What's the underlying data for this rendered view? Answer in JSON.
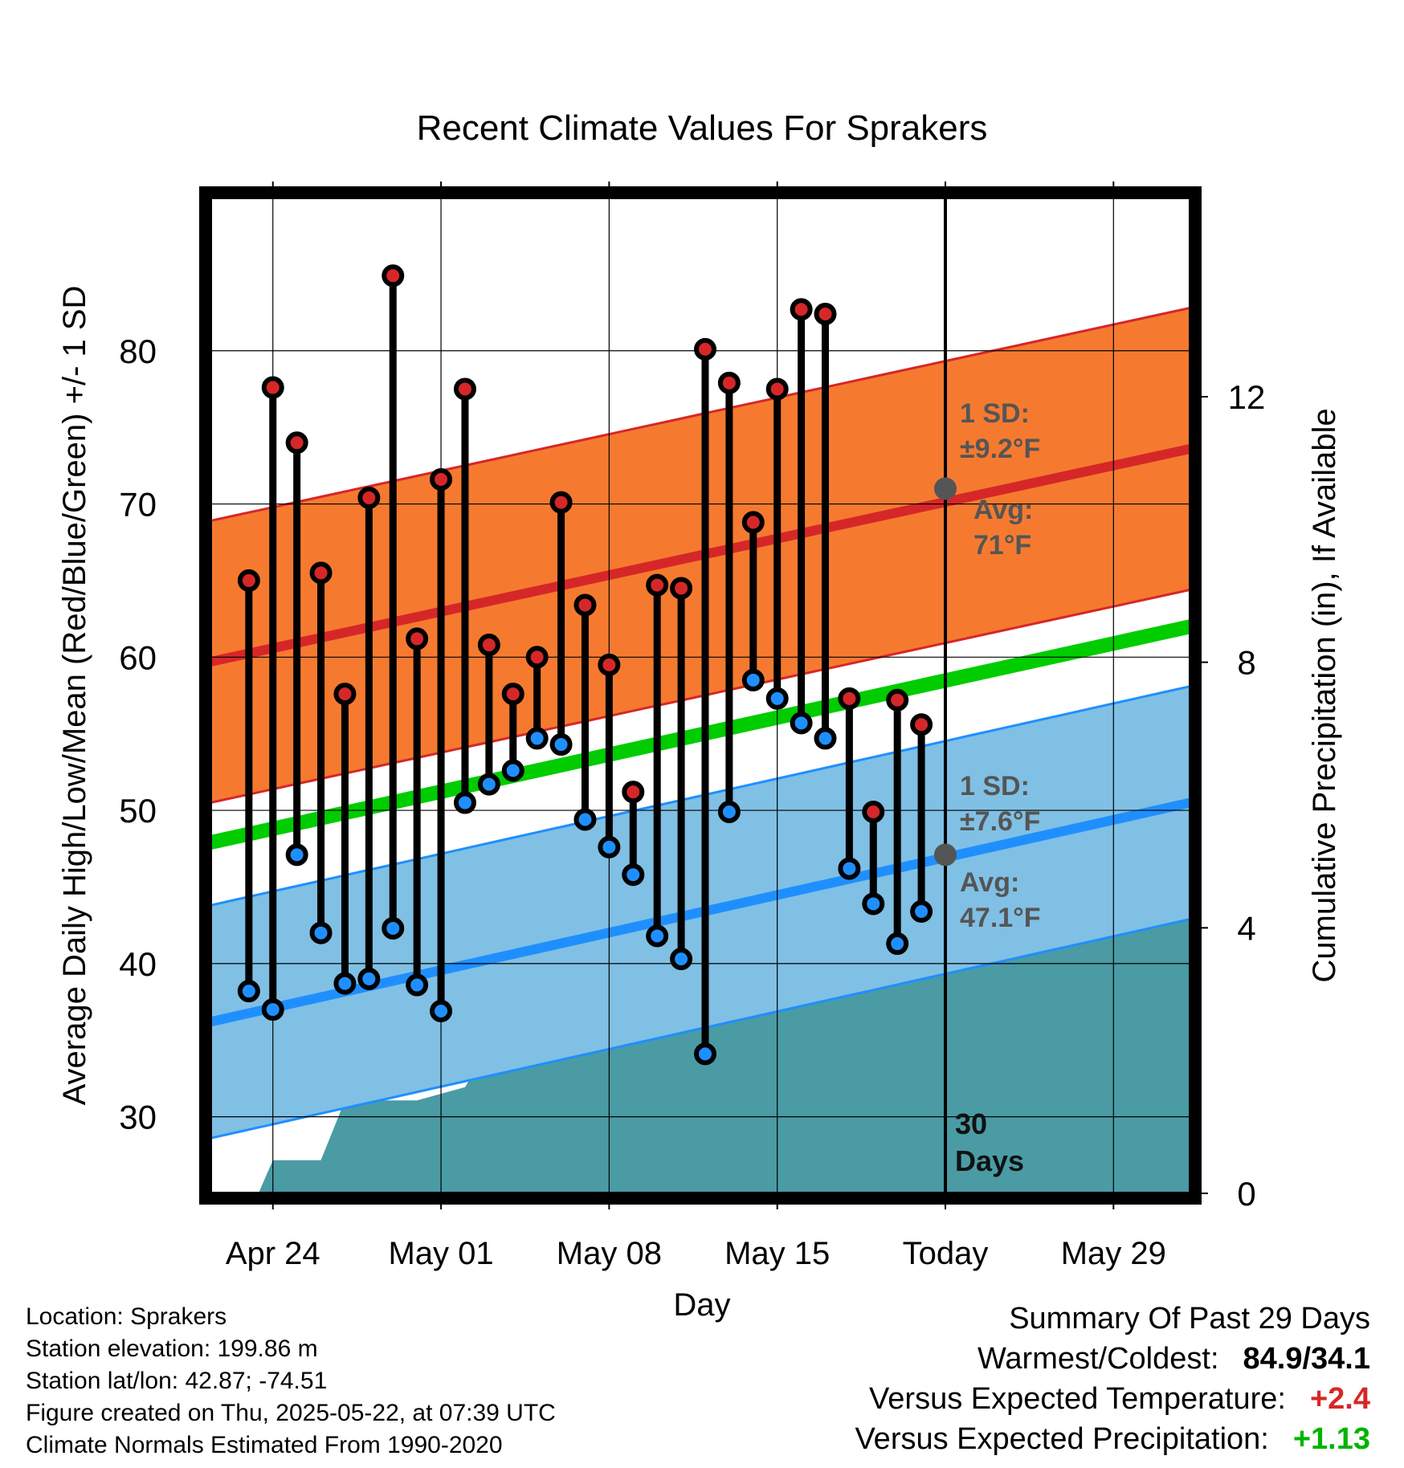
{
  "chart_data": {
    "type": "line",
    "title": "Recent Climate Values For Sprakers",
    "xlabel": "Day",
    "ylabel": "Average Daily High/Low/Mean (Red/Blue/Green) +/- 1 SD",
    "y2label": "Cumulative Precipitation (in), If Available",
    "ylim": [
      25,
      90
    ],
    "y2lim": [
      0,
      15
    ],
    "yticks": [
      30,
      40,
      50,
      60,
      70,
      80
    ],
    "y2ticks": [
      0,
      4,
      8,
      12
    ],
    "xticks": [
      {
        "day": 2,
        "label": "Apr 24"
      },
      {
        "day": 9,
        "label": "May 01"
      },
      {
        "day": 16,
        "label": "May 08"
      },
      {
        "day": 23,
        "label": "May 15"
      },
      {
        "day": 30,
        "label": "Today"
      },
      {
        "day": 37,
        "label": "May 29"
      }
    ],
    "xlim": [
      -0.6,
      40.2
    ],
    "today_day": 30,
    "grid": true,
    "colors": {
      "high": "#d62728",
      "low": "#1f8fff",
      "mean": "#00cc00",
      "high_band": "#f57a30",
      "low_band": "#80c0e4",
      "precip": "#4a9ba4"
    },
    "normals": {
      "high_avg": {
        "start": 59.7,
        "end": 73.6
      },
      "high_sd": 9.2,
      "low_avg": {
        "start": 36.2,
        "end": 50.5
      },
      "low_sd": 7.6,
      "mean": {
        "start": 47.9,
        "end": 62.0
      }
    },
    "daily": [
      {
        "day": 1,
        "high": 65.0,
        "low": 38.2
      },
      {
        "day": 2,
        "high": 77.6,
        "low": 37.0
      },
      {
        "day": 3,
        "high": 74.0,
        "low": 47.1
      },
      {
        "day": 4,
        "high": 65.5,
        "low": 42.0
      },
      {
        "day": 5,
        "high": 57.6,
        "low": 38.7
      },
      {
        "day": 6,
        "high": 70.4,
        "low": 39.0
      },
      {
        "day": 7,
        "high": 84.9,
        "low": 42.3
      },
      {
        "day": 8,
        "high": 61.2,
        "low": 38.6
      },
      {
        "day": 9,
        "high": 71.6,
        "low": 36.9
      },
      {
        "day": 10,
        "high": 77.5,
        "low": 50.5
      },
      {
        "day": 11,
        "high": 60.8,
        "low": 51.7
      },
      {
        "day": 12,
        "high": 57.6,
        "low": 52.6
      },
      {
        "day": 13,
        "high": 60.0,
        "low": 54.7
      },
      {
        "day": 14,
        "high": 70.1,
        "low": 54.3
      },
      {
        "day": 15,
        "high": 63.4,
        "low": 49.4
      },
      {
        "day": 16,
        "high": 59.5,
        "low": 47.6
      },
      {
        "day": 17,
        "high": 51.2,
        "low": 45.8
      },
      {
        "day": 18,
        "high": 64.7,
        "low": 41.8
      },
      {
        "day": 19,
        "high": 64.5,
        "low": 40.3
      },
      {
        "day": 20,
        "high": 80.1,
        "low": 34.1
      },
      {
        "day": 21,
        "high": 77.9,
        "low": 49.9
      },
      {
        "day": 22,
        "high": 68.8,
        "low": 58.5
      },
      {
        "day": 23,
        "high": 77.5,
        "low": 57.3
      },
      {
        "day": 24,
        "high": 82.7,
        "low": 55.7
      },
      {
        "day": 25,
        "high": 82.4,
        "low": 54.7
      },
      {
        "day": 26,
        "high": 57.3,
        "low": 46.2
      },
      {
        "day": 27,
        "high": 49.9,
        "low": 43.9
      },
      {
        "day": 28,
        "high": 57.2,
        "low": 41.3
      },
      {
        "day": 29,
        "high": 55.6,
        "low": 43.4
      }
    ],
    "precip_cumulative": [
      {
        "day": 0,
        "value": 0.0
      },
      {
        "day": 1,
        "value": 0.0
      },
      {
        "day": 1.4,
        "value": 0.0
      },
      {
        "day": 2,
        "value": 0.5
      },
      {
        "day": 3,
        "value": 0.5
      },
      {
        "day": 4,
        "value": 0.5
      },
      {
        "day": 5,
        "value": 1.4
      },
      {
        "day": 6,
        "value": 1.4
      },
      {
        "day": 7,
        "value": 1.4
      },
      {
        "day": 8,
        "value": 1.4
      },
      {
        "day": 9,
        "value": 1.5
      },
      {
        "day": 10,
        "value": 1.6
      },
      {
        "day": 11,
        "value": 2.2
      },
      {
        "day": 12,
        "value": 2.5
      },
      {
        "day": 13,
        "value": 3.1
      },
      {
        "day": 14,
        "value": 3.1
      },
      {
        "day": 15,
        "value": 3.1
      },
      {
        "day": 16,
        "value": 4.3
      },
      {
        "day": 17,
        "value": 4.3
      },
      {
        "day": 18,
        "value": 4.3
      },
      {
        "day": 19,
        "value": 4.3
      },
      {
        "day": 20,
        "value": 4.3
      },
      {
        "day": 21,
        "value": 4.3
      },
      {
        "day": 22,
        "value": 4.3
      },
      {
        "day": 23,
        "value": 4.35
      },
      {
        "day": 24,
        "value": 4.45
      },
      {
        "day": 25,
        "value": 4.45
      },
      {
        "day": 26,
        "value": 4.45
      },
      {
        "day": 27,
        "value": 4.55
      },
      {
        "day": 28,
        "value": 4.55
      },
      {
        "day": 29,
        "value": 4.55
      },
      {
        "day": 40.2,
        "value": 4.55
      }
    ],
    "annotations": {
      "high_sd_label": "1 SD:",
      "high_sd_value": "±9.2°F",
      "high_avg_label": "Avg:",
      "high_avg_value": "71°F",
      "high_avg_marker": 71.0,
      "low_sd_label": "1 SD:",
      "low_sd_value": "±7.6°F",
      "low_avg_label": "Avg:",
      "low_avg_value": "47.1°F",
      "low_avg_marker": 47.1,
      "days_num": "30",
      "days_word": "Days"
    }
  },
  "info": {
    "location": "Location: Sprakers",
    "elevation": "Station elevation: 199.86 m",
    "latlon": "Station lat/lon: 42.87; -74.51",
    "created": "Figure created on Thu, 2025-05-22, at 07:39 UTC",
    "normals": "Climate Normals Estimated From 1990-2020"
  },
  "summary": {
    "heading": "Summary Of Past 29 Days",
    "warmest_label": "Warmest/Coldest:",
    "warmest_value": "84.9/34.1",
    "temp_label": "Versus Expected Temperature:",
    "temp_value": "+2.4",
    "temp_color": "#d62728",
    "precip_label": "Versus Expected Precipitation:",
    "precip_value": "+1.13",
    "precip_color": "#00b400"
  }
}
